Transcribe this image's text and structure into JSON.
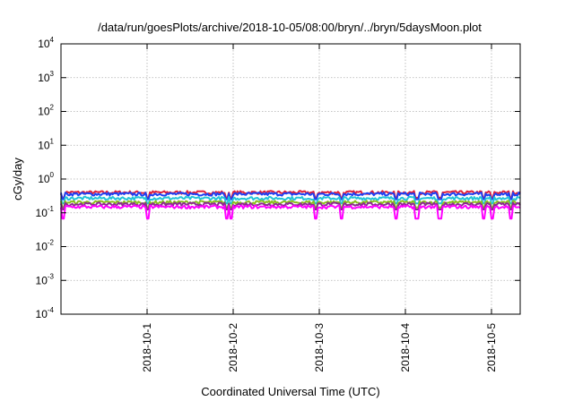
{
  "chart_data": {
    "type": "line",
    "title": "/data/run/goesPlots/archive/2018-10-05/08:00/bryn/../bryn/5daysMoon.plot",
    "xlabel": "Coordinated Universal Time (UTC)",
    "ylabel": "cGy/day",
    "yscale": "log",
    "ylim": [
      0.0001,
      10000
    ],
    "y_ticks": [
      {
        "base": "10",
        "exp": "4",
        "value": 10000
      },
      {
        "base": "10",
        "exp": "3",
        "value": 1000
      },
      {
        "base": "10",
        "exp": "2",
        "value": 100
      },
      {
        "base": "10",
        "exp": "1",
        "value": 10
      },
      {
        "base": "10",
        "exp": "0",
        "value": 1
      },
      {
        "base": "10",
        "exp": "-1",
        "value": 0.1
      },
      {
        "base": "10",
        "exp": "-2",
        "value": 0.01
      },
      {
        "base": "10",
        "exp": "-3",
        "value": 0.001
      },
      {
        "base": "10",
        "exp": "-4",
        "value": 0.0001
      }
    ],
    "xlim": [
      "2018-09-30T00:00",
      "2018-10-05T08:00"
    ],
    "x_ticks": [
      {
        "label": "2018-10-1",
        "value": "2018-10-01T00:00"
      },
      {
        "label": "2018-10-2",
        "value": "2018-10-02T00:00"
      },
      {
        "label": "2018-10-3",
        "value": "2018-10-03T00:00"
      },
      {
        "label": "2018-10-4",
        "value": "2018-10-04T00:00"
      },
      {
        "label": "2018-10-5",
        "value": "2018-10-05T00:00"
      }
    ],
    "grid": true,
    "legend": "none",
    "series": [
      {
        "color": "#e0203a",
        "level": 0.4
      },
      {
        "color": "#1f3ff2",
        "level": 0.36
      },
      {
        "color": "#23c4d8",
        "level": 0.27
      },
      {
        "color": "#8bbf1f",
        "level": 0.205
      },
      {
        "color": "#8b2b8f",
        "level": 0.18
      },
      {
        "color": "#ff00ff",
        "level": 0.15
      }
    ]
  }
}
